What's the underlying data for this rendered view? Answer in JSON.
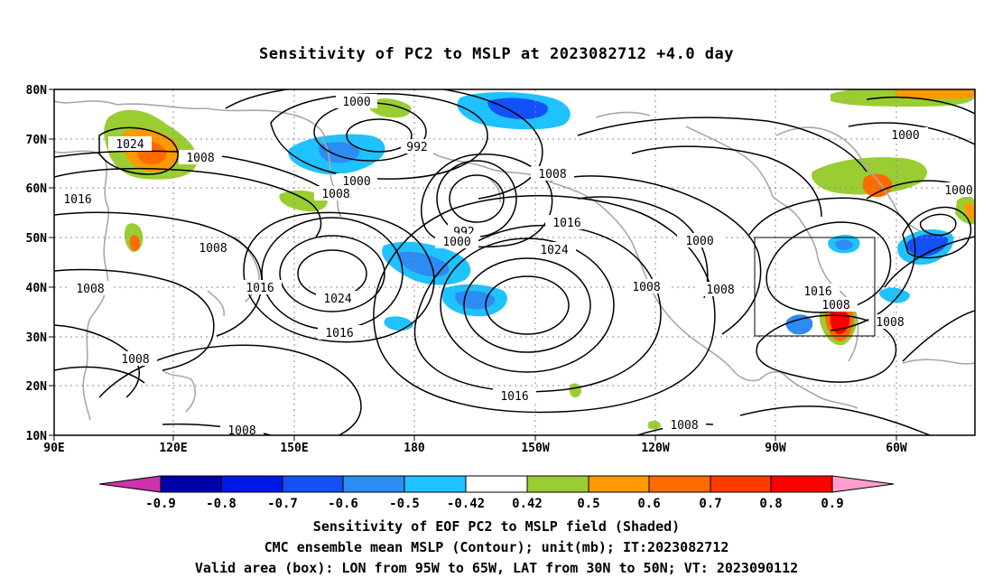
{
  "title": "Sensitivity of PC2 to MSLP at 2023082712 +4.0 day",
  "map": {
    "lat_ticks": [
      "80N",
      "70N",
      "60N",
      "50N",
      "40N",
      "30N",
      "20N",
      "10N"
    ],
    "lon_ticks": [
      "90E",
      "120E",
      "150E",
      "180",
      "150W",
      "120W",
      "90W",
      "60W"
    ],
    "valid_box": {
      "lon_from": "95W",
      "lon_to": "65W",
      "lat_from": "30N",
      "lat_to": "50N"
    },
    "contour_labels": [
      "1000",
      "992",
      "1024",
      "1008",
      "1000",
      "1008",
      "1016",
      "1008",
      "1008",
      "992",
      "1000",
      "1016",
      "1024",
      "1008",
      "1000",
      "1008",
      "1016",
      "1024",
      "1008",
      "1016",
      "1008",
      "1016",
      "1008",
      "1008",
      "1000",
      "1000",
      "1008"
    ],
    "contour_unit": "mb",
    "colors": {
      "contour": "#000000",
      "coast": "#a8a8a8",
      "grid": "#8c8c8c"
    }
  },
  "colorbar": {
    "labels": [
      "-0.9",
      "-0.8",
      "-0.7",
      "-0.6",
      "-0.5",
      "-0.42",
      "0.42",
      "0.5",
      "0.6",
      "0.7",
      "0.8",
      "0.9"
    ],
    "colors": [
      "#cc33aa",
      "#0000aa",
      "#0018e8",
      "#1450f8",
      "#2c8cf4",
      "#1ec2ff",
      "#ffffff",
      "#9acd32",
      "#ff9900",
      "#ff6b00",
      "#ff3b00",
      "#ff0000",
      "#ff9ecf"
    ]
  },
  "captions": {
    "line1": "Sensitivity of EOF PC2 to MSLP field (Shaded)",
    "line2": "CMC ensemble mean MSLP (Contour); unit(mb); IT:2023082712",
    "line3": "Valid area (box): LON from 95W to 65W, LAT from 30N to 50N; VT: 2023090112"
  }
}
